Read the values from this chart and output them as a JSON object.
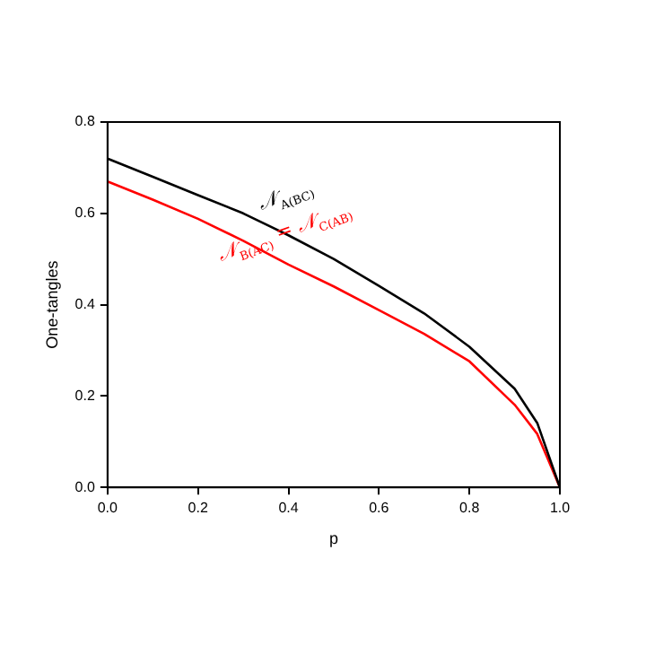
{
  "chart_data": {
    "type": "line",
    "xlabel": "p",
    "ylabel": "One-tangles",
    "x": [
      0,
      0.1,
      0.2,
      0.3,
      0.4,
      0.5,
      0.6,
      0.7,
      0.8,
      0.9,
      0.95,
      1.0
    ],
    "series": [
      {
        "color": "#000000",
        "values": [
          0.72,
          0.68,
          0.64,
          0.6,
          0.552,
          0.5,
          0.441,
          0.381,
          0.308,
          0.216,
          0.141,
          0
        ]
      },
      {
        "color": "#ff0000",
        "values": [
          0.67,
          0.63,
          0.588,
          0.54,
          0.488,
          0.44,
          0.388,
          0.336,
          0.276,
          0.181,
          0.117,
          0
        ]
      }
    ],
    "annotations": [
      "𝒩$_{A(BC)}$",
      "𝒩$_{B(AC)}$ = 𝒩$_{C(AB)}$"
    ],
    "xlim": [
      0,
      1.0
    ],
    "ylim": [
      0,
      0.8
    ],
    "xticks": [
      {
        "value": 0,
        "label": "0.0"
      },
      0.2,
      0.4,
      0.6,
      0.8,
      {
        "value": 1.0,
        "label": "1.0"
      }
    ],
    "yticks": [
      {
        "value": 0,
        "label": "0.0"
      },
      0.2,
      0.4,
      0.6,
      0.8
    ],
    "grid": false,
    "legend": false,
    "marker": "none",
    "line_style": "solid"
  }
}
